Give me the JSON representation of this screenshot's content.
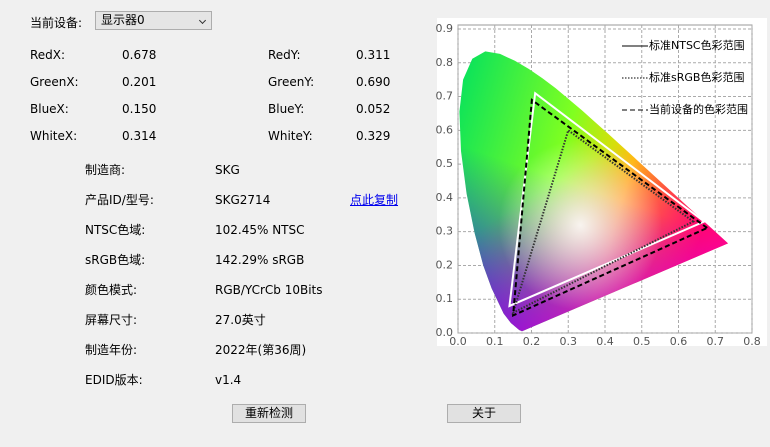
{
  "device": {
    "label": "当前设备:",
    "selected": "显示器0"
  },
  "coords": [
    [
      "RedX:",
      "0.678",
      "RedY:",
      "0.311"
    ],
    [
      "GreenX:",
      "0.201",
      "GreenY:",
      "0.690"
    ],
    [
      "BlueX:",
      "0.150",
      "BlueY:",
      "0.052"
    ],
    [
      "WhiteX:",
      "0.314",
      "WhiteY:",
      "0.329"
    ]
  ],
  "info": [
    [
      "制造商:",
      "SKG"
    ],
    [
      "产品ID/型号:",
      "SKG2714"
    ],
    [
      "NTSC色域:",
      "102.45% NTSC"
    ],
    [
      "sRGB色域:",
      "142.29% sRGB"
    ],
    [
      "颜色模式:",
      "RGB/YCrCb 10Bits"
    ],
    [
      "屏幕尺寸:",
      "27.0英寸"
    ],
    [
      "制造年份:",
      "2022年(第36周)"
    ],
    [
      "EDID版本:",
      "v1.4"
    ]
  ],
  "copy_link": "点此复制",
  "buttons": [
    "重新检测",
    "关于"
  ],
  "chart_data": {
    "type": "gamut",
    "xlim": [
      0,
      0.8
    ],
    "ylim": [
      0,
      0.9
    ],
    "xticks": [
      {
        "value": 0,
        "label": "0.0"
      },
      {
        "value": 0.1,
        "label": "0.1"
      },
      {
        "value": 0.2,
        "label": "0.2"
      },
      {
        "value": 0.3,
        "label": "0.3"
      },
      {
        "value": 0.4,
        "label": "0.4"
      },
      {
        "value": 0.5,
        "label": "0.5"
      },
      {
        "value": 0.6,
        "label": "0.6"
      },
      {
        "value": 0.7,
        "label": "0.7"
      },
      {
        "value": 0.8,
        "label": "0.8"
      }
    ],
    "yticks": [
      {
        "value": 0,
        "label": "0.0"
      },
      {
        "value": 0.1,
        "label": "0.1"
      },
      {
        "value": 0.2,
        "label": "0.2"
      },
      {
        "value": 0.3,
        "label": "0.3"
      },
      {
        "value": 0.4,
        "label": "0.4"
      },
      {
        "value": 0.5,
        "label": "0.5"
      },
      {
        "value": 0.6,
        "label": "0.6"
      },
      {
        "value": 0.7,
        "label": "0.7"
      },
      {
        "value": 0.8,
        "label": "0.8"
      },
      {
        "value": 0.9,
        "label": "0.9"
      }
    ],
    "grid": true,
    "legend": "upper-right",
    "series": [
      {
        "name": "标准NTSC色彩范围",
        "color": "#ffffff",
        "dash": "solid",
        "x": [
          0.67,
          0.21,
          0.14
        ],
        "y": [
          0.33,
          0.71,
          0.08
        ]
      },
      {
        "name": "标准sRGB色彩范围",
        "color": "#333333",
        "dash": "dotted",
        "x": [
          0.64,
          0.3,
          0.15
        ],
        "y": [
          0.33,
          0.6,
          0.06
        ]
      },
      {
        "name": "当前设备的色彩范围",
        "color": "#000000",
        "dash": "dashed",
        "x": [
          0.678,
          0.201,
          0.15
        ],
        "y": [
          0.311,
          0.69,
          0.052
        ]
      }
    ]
  }
}
